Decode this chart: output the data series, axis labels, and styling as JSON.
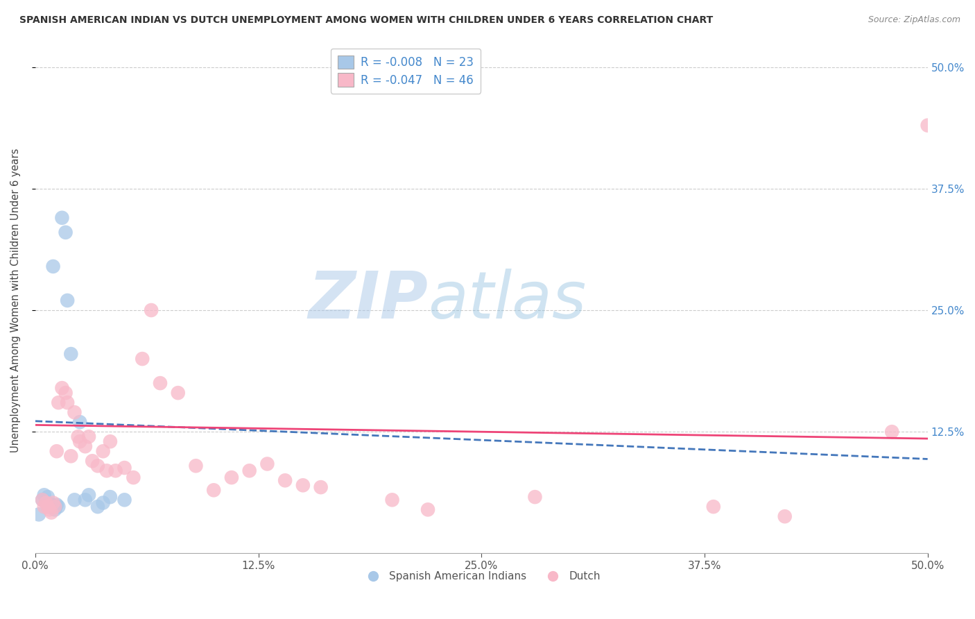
{
  "title": "SPANISH AMERICAN INDIAN VS DUTCH UNEMPLOYMENT AMONG WOMEN WITH CHILDREN UNDER 6 YEARS CORRELATION CHART",
  "source": "Source: ZipAtlas.com",
  "ylabel": "Unemployment Among Women with Children Under 6 years",
  "xlim": [
    0.0,
    0.5
  ],
  "ylim": [
    0.0,
    0.52
  ],
  "xticks": [
    0.0,
    0.125,
    0.25,
    0.375,
    0.5
  ],
  "xtick_labels": [
    "0.0%",
    "12.5%",
    "25.0%",
    "37.5%",
    "50.0%"
  ],
  "yticks": [
    0.125,
    0.25,
    0.375,
    0.5
  ],
  "ytick_labels": [
    "12.5%",
    "25.0%",
    "37.5%",
    "50.0%"
  ],
  "legend_line1": "R = -0.008   N = 23",
  "legend_line2": "R = -0.047   N = 46",
  "color_blue": "#a8c8e8",
  "color_pink": "#f8b8c8",
  "color_blue_line": "#4477bb",
  "color_pink_line": "#ee4477",
  "watermark_zip": "ZIP",
  "watermark_atlas": "atlas",
  "background_color": "#ffffff",
  "grid_color": "#cccccc",
  "title_color": "#333333",
  "right_axis_color": "#4488cc",
  "blue_trend_start": 0.136,
  "blue_trend_end": 0.097,
  "pink_trend_start": 0.132,
  "pink_trend_end": 0.118,
  "blue_x": [
    0.002,
    0.004,
    0.005,
    0.006,
    0.007,
    0.008,
    0.009,
    0.01,
    0.011,
    0.012,
    0.013,
    0.015,
    0.017,
    0.018,
    0.02,
    0.022,
    0.025,
    0.028,
    0.03,
    0.035,
    0.038,
    0.042,
    0.05
  ],
  "blue_y": [
    0.04,
    0.055,
    0.06,
    0.052,
    0.058,
    0.048,
    0.05,
    0.295,
    0.045,
    0.05,
    0.048,
    0.345,
    0.33,
    0.26,
    0.205,
    0.055,
    0.135,
    0.055,
    0.06,
    0.048,
    0.052,
    0.058,
    0.055
  ],
  "pink_x": [
    0.004,
    0.005,
    0.006,
    0.007,
    0.008,
    0.009,
    0.01,
    0.011,
    0.012,
    0.013,
    0.015,
    0.017,
    0.018,
    0.02,
    0.022,
    0.024,
    0.025,
    0.028,
    0.03,
    0.032,
    0.035,
    0.038,
    0.04,
    0.042,
    0.045,
    0.05,
    0.055,
    0.06,
    0.065,
    0.07,
    0.08,
    0.09,
    0.1,
    0.11,
    0.12,
    0.13,
    0.14,
    0.15,
    0.16,
    0.2,
    0.22,
    0.28,
    0.38,
    0.42,
    0.48,
    0.5
  ],
  "pink_y": [
    0.055,
    0.048,
    0.052,
    0.048,
    0.045,
    0.042,
    0.052,
    0.048,
    0.105,
    0.155,
    0.17,
    0.165,
    0.155,
    0.1,
    0.145,
    0.12,
    0.115,
    0.11,
    0.12,
    0.095,
    0.09,
    0.105,
    0.085,
    0.115,
    0.085,
    0.088,
    0.078,
    0.2,
    0.25,
    0.175,
    0.165,
    0.09,
    0.065,
    0.078,
    0.085,
    0.092,
    0.075,
    0.07,
    0.068,
    0.055,
    0.045,
    0.058,
    0.048,
    0.038,
    0.125,
    0.44
  ]
}
